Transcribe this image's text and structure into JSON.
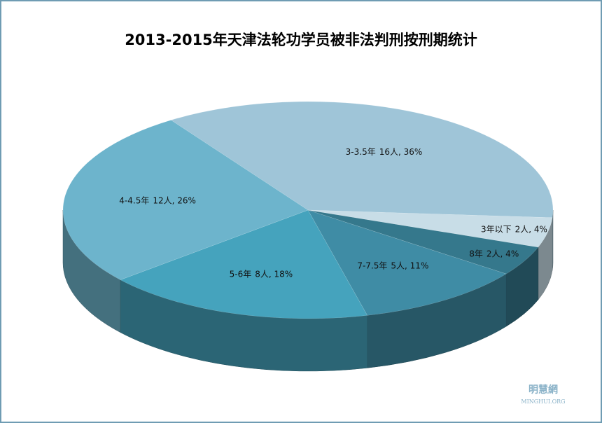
{
  "chart_data": {
    "type": "pie3d",
    "title": "2013-2015年天津法轮功学员被非法判刑按刑期统计",
    "categories": [
      "3-3.5年",
      "3年以下",
      "8年",
      "7-7.5年",
      "5-6年",
      "4-4.5年"
    ],
    "values": [
      16,
      2,
      2,
      5,
      8,
      12
    ],
    "value_labels": [
      "16人, 36%",
      "2人, 4%",
      "2人, 4%",
      "5人, 11%",
      "8人, 18%",
      "12人, 26%"
    ],
    "colors": [
      "#9fc5d8",
      "#c8dde7",
      "#35788c",
      "#3f8ca5",
      "#45a3bd",
      "#6db4cc"
    ],
    "start_angle": 236,
    "watermark": "明慧網",
    "watermark_sub": "MINGHUI.ORG"
  }
}
